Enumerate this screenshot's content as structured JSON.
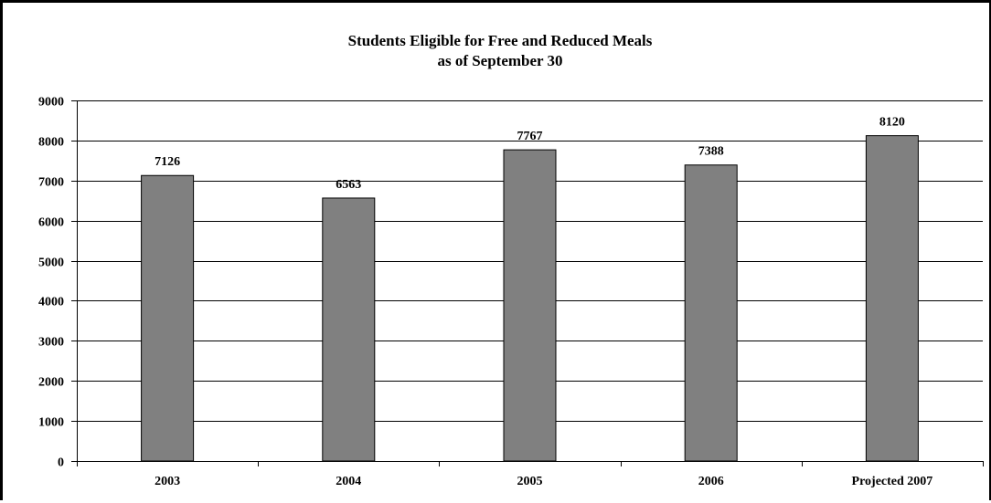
{
  "chart_data": {
    "type": "bar",
    "title": "Students Eligible for Free and Reduced Meals",
    "subtitle": "as of September 30",
    "categories": [
      "2003",
      "2004",
      "2005",
      "2006",
      "Projected 2007"
    ],
    "values": [
      7126,
      6563,
      7767,
      7388,
      8120
    ],
    "ylim": [
      0,
      9000
    ],
    "yticks": [
      "0",
      "1000",
      "2000",
      "3000",
      "4000",
      "5000",
      "6000",
      "7000",
      "8000",
      "9000"
    ],
    "grid": true,
    "legend": "none",
    "colors": {
      "bar": "#808080",
      "bar_edge": "#000000",
      "grid": "#000000"
    }
  }
}
